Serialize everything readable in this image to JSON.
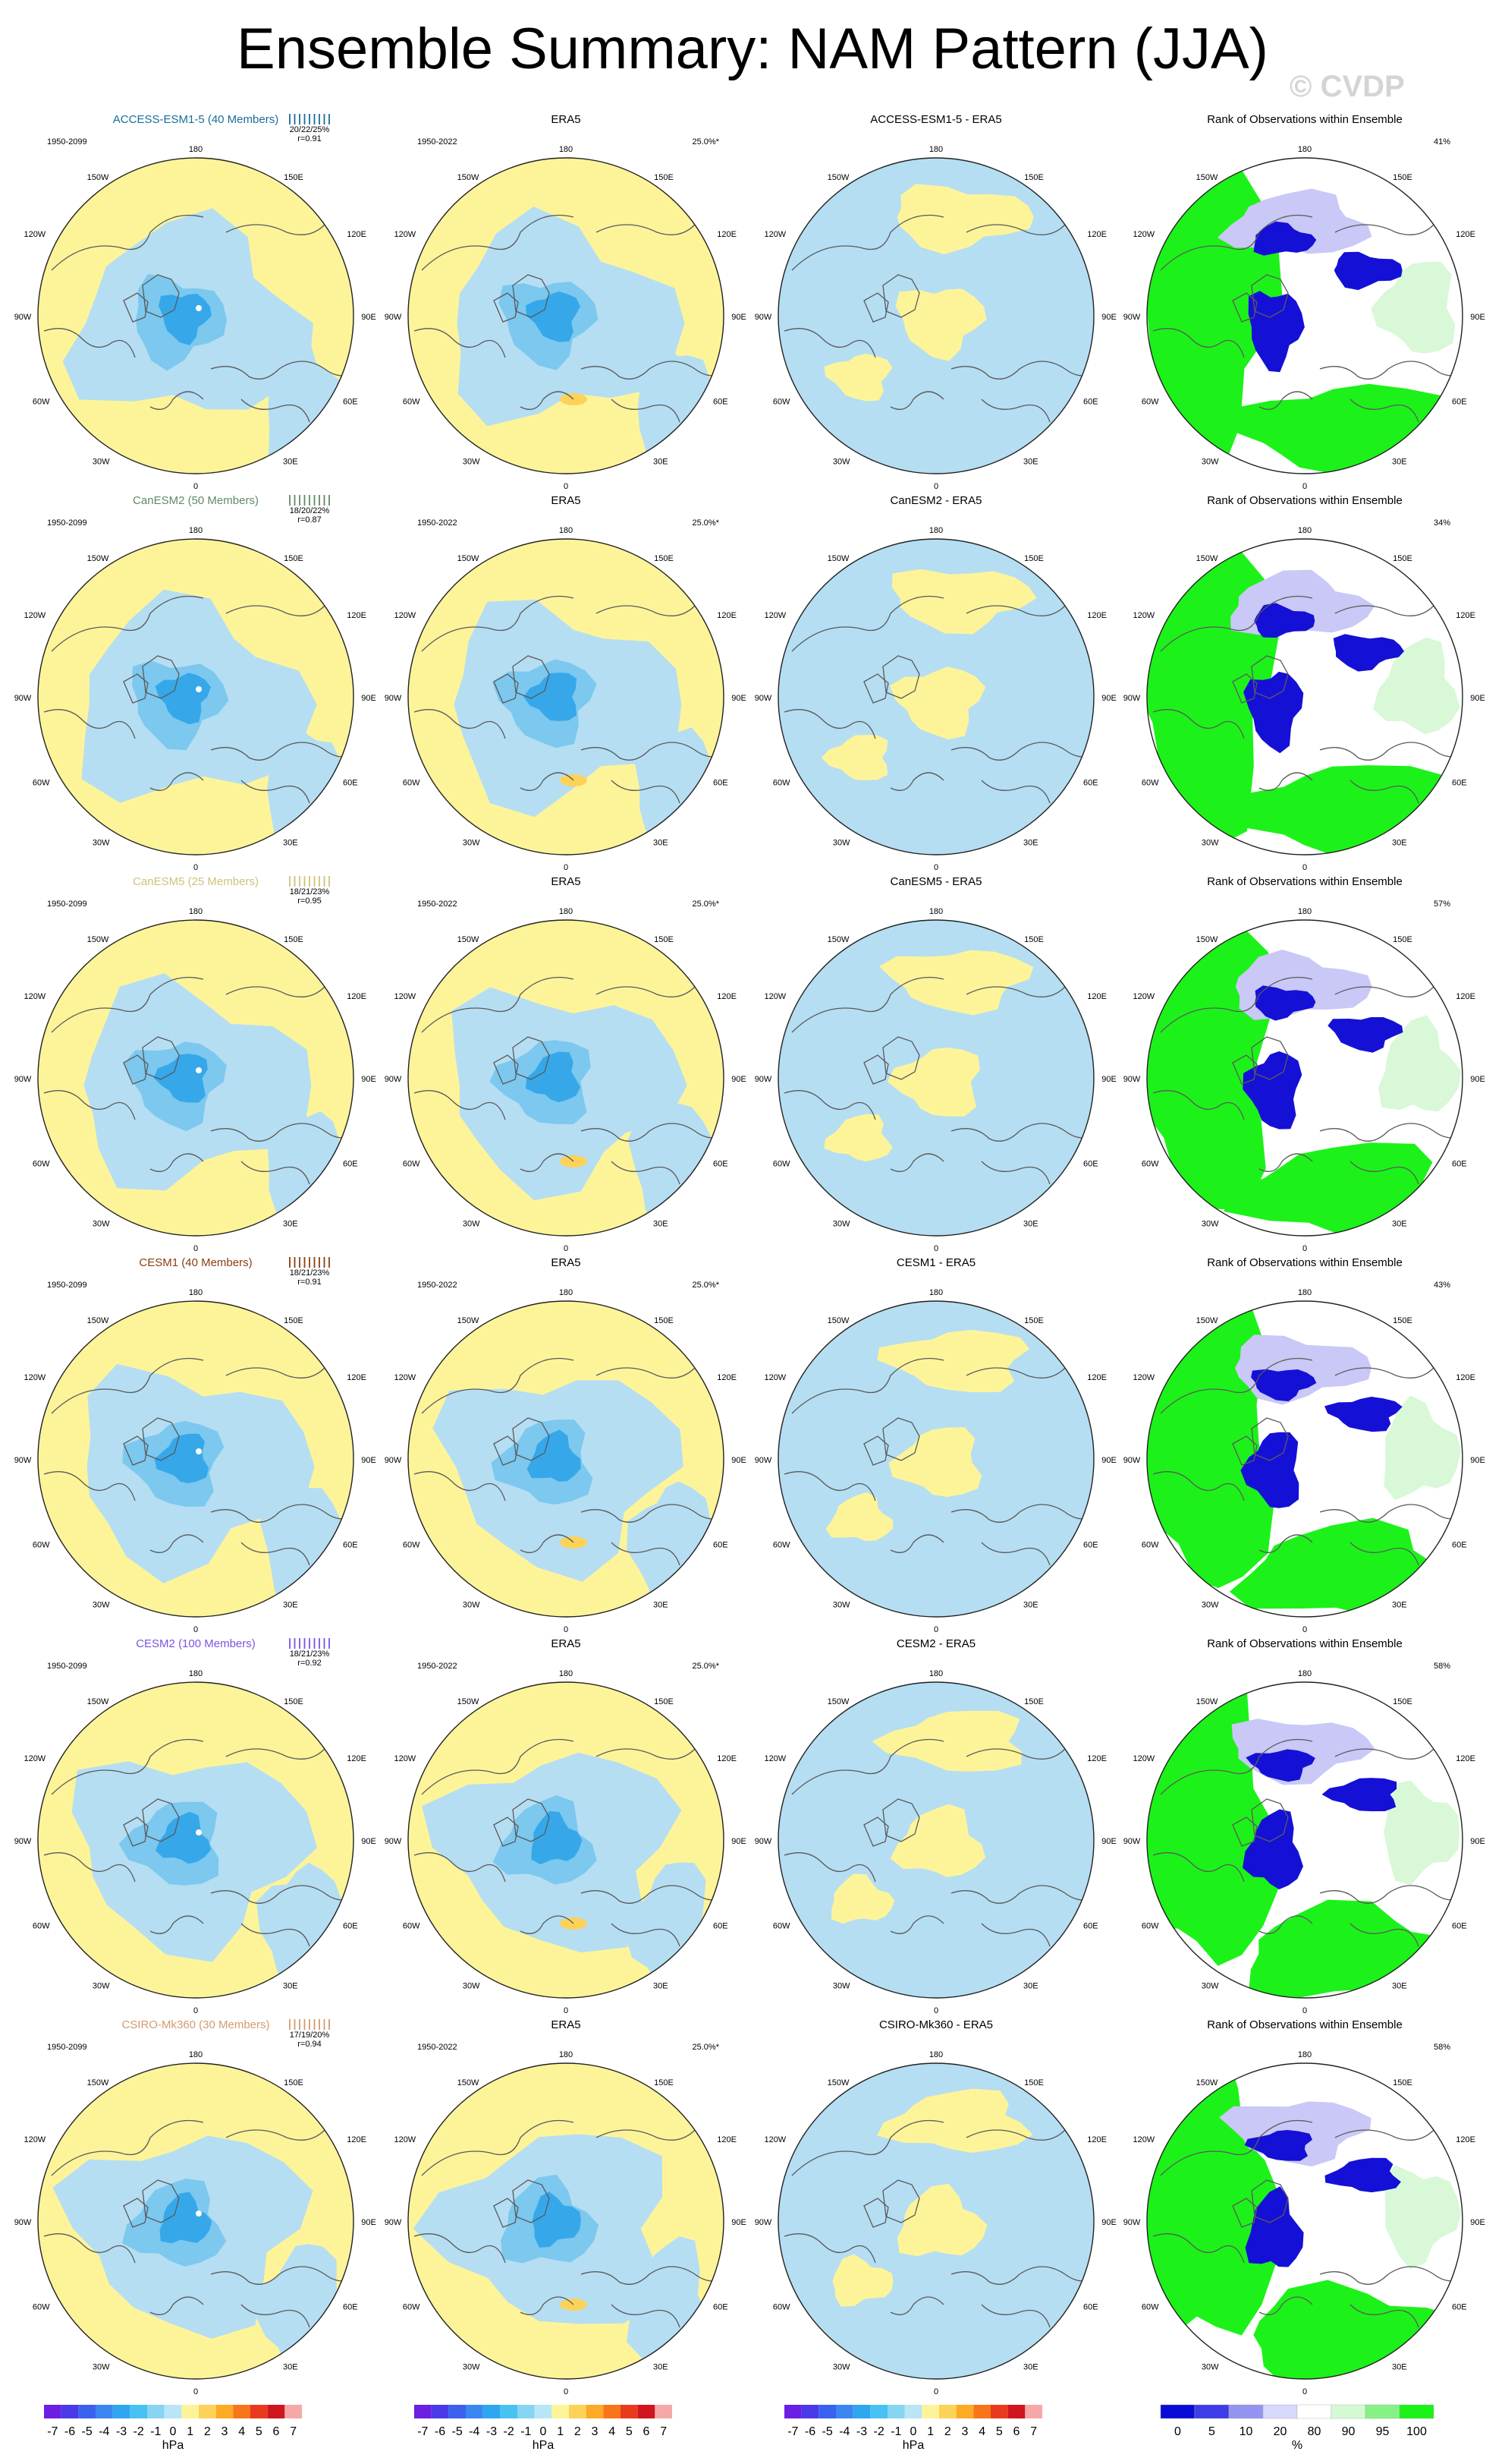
{
  "title": "Ensemble Summary: NAM Pattern (JJA)",
  "watermark": "© CVDP",
  "colors": {
    "ocean_pos": "#fdf49a",
    "neg_light": "#b5def2",
    "neg_mid": "#7cc8ef",
    "neg_deep": "#36a8ea",
    "pos_orange": "#fdd259",
    "rank_green": "#1cf219",
    "rank_blue": "#1510d6",
    "rank_lightblue": "#c9c8f6",
    "rank_lightgreen": "#d8f8d8",
    "coast": "#5a5a5a"
  },
  "map_labels": {
    "lon_180": "180",
    "lon_150w": "150W",
    "lon_150e": "150E",
    "lon_120w": "120W",
    "lon_120e": "120E",
    "lon_90w": "90W",
    "lon_90e": "90E",
    "lon_60w": "60W",
    "lon_60e": "60E",
    "lon_30w": "30W",
    "lon_30e": "30E",
    "lon_0": "0"
  },
  "rows": [
    {
      "model": "ACCESS-ESM1-5 (40 Members)",
      "model_color": "#1a6d96",
      "model_period": "1950-2099",
      "model_stats": "20/22/25%",
      "model_r": "r=0.91",
      "obs": "ERA5",
      "obs_period": "1950-2022",
      "obs_pct": "25.0%*",
      "diff": "ACCESS-ESM1-5 - ERA5",
      "rank": "Rank of Observations within Ensemble",
      "rank_pct": "41%"
    },
    {
      "model": "CanESM2 (50 Members)",
      "model_color": "#5f8a64",
      "model_period": "1950-2099",
      "model_stats": "18/20/22%",
      "model_r": "r=0.87",
      "obs": "ERA5",
      "obs_period": "1950-2022",
      "obs_pct": "25.0%*",
      "diff": "CanESM2 - ERA5",
      "rank": "Rank of Observations within Ensemble",
      "rank_pct": "34%"
    },
    {
      "model": "CanESM5 (25 Members)",
      "model_color": "#cfc27a",
      "model_period": "1950-2099",
      "model_stats": "18/21/23%",
      "model_r": "r=0.95",
      "obs": "ERA5",
      "obs_period": "1950-2022",
      "obs_pct": "25.0%*",
      "diff": "CanESM5 - ERA5",
      "rank": "Rank of Observations within Ensemble",
      "rank_pct": "57%"
    },
    {
      "model": "CESM1 (40 Members)",
      "model_color": "#8a3e10",
      "model_period": "1950-2099",
      "model_stats": "18/21/23%",
      "model_r": "r=0.91",
      "obs": "ERA5",
      "obs_period": "1950-2022",
      "obs_pct": "25.0%*",
      "diff": "CESM1 - ERA5",
      "rank": "Rank of Observations within Ensemble",
      "rank_pct": "43%"
    },
    {
      "model": "CESM2 (100 Members)",
      "model_color": "#7a55e0",
      "model_period": "1950-2099",
      "model_stats": "18/21/23%",
      "model_r": "r=0.92",
      "obs": "ERA5",
      "obs_period": "1950-2022",
      "obs_pct": "25.0%*",
      "diff": "CESM2 - ERA5",
      "rank": "Rank of Observations within Ensemble",
      "rank_pct": "58%"
    },
    {
      "model": "CSIRO-Mk360 (30 Members)",
      "model_color": "#d49a70",
      "model_period": "1950-2099",
      "model_stats": "17/19/20%",
      "model_r": "r=0.94",
      "obs": "ERA5",
      "obs_period": "1950-2022",
      "obs_pct": "25.0%*",
      "diff": "CSIRO-Mk360 - ERA5",
      "rank": "Rank of Observations within Ensemble",
      "rank_pct": "58%"
    }
  ],
  "chart_data": [
    {
      "type": "colorbar",
      "unit": "hPa",
      "labels": [
        "-7",
        "-6",
        "-5",
        "-4",
        "-3",
        "-2",
        "-1",
        "0",
        "1",
        "2",
        "3",
        "4",
        "5",
        "6",
        "7"
      ],
      "colors": [
        "#6c1ee2",
        "#4a3ae8",
        "#3a62ef",
        "#3c86f2",
        "#2ea6f0",
        "#48c2f2",
        "#88d4f3",
        "#b8e6f6",
        "#fdf49a",
        "#fdd259",
        "#fdaa25",
        "#f8751a",
        "#ea3a1e",
        "#d0161e",
        "#f6a8a8"
      ]
    },
    {
      "type": "colorbar",
      "unit": "%",
      "labels": [
        "0",
        "5",
        "10",
        "20",
        "80",
        "90",
        "95",
        "100"
      ],
      "colors": [
        "#0b0bd8",
        "#3c3ce8",
        "#9494f0",
        "#d8d8fa",
        "#ffffff",
        "#d4fad4",
        "#86f286",
        "#1cf219"
      ]
    }
  ]
}
